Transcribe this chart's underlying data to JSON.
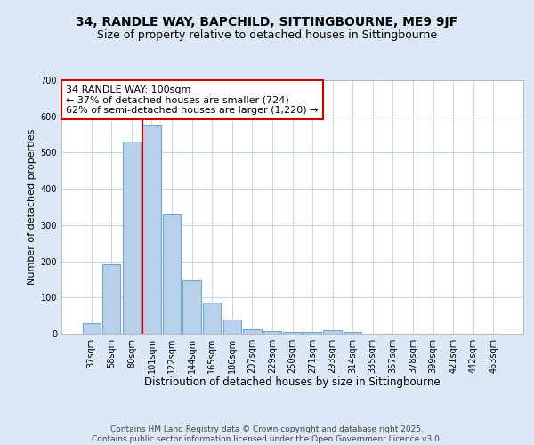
{
  "title1": "34, RANDLE WAY, BAPCHILD, SITTINGBOURNE, ME9 9JF",
  "title2": "Size of property relative to detached houses in Sittingbourne",
  "xlabel": "Distribution of detached houses by size in Sittingbourne",
  "ylabel": "Number of detached properties",
  "categories": [
    "37sqm",
    "58sqm",
    "80sqm",
    "101sqm",
    "122sqm",
    "144sqm",
    "165sqm",
    "186sqm",
    "207sqm",
    "229sqm",
    "250sqm",
    "271sqm",
    "293sqm",
    "314sqm",
    "335sqm",
    "357sqm",
    "378sqm",
    "399sqm",
    "421sqm",
    "442sqm",
    "463sqm"
  ],
  "values": [
    30,
    192,
    530,
    575,
    330,
    148,
    87,
    40,
    13,
    8,
    5,
    5,
    10,
    5,
    0,
    0,
    0,
    0,
    0,
    0,
    0
  ],
  "bar_color": "#b8d0ea",
  "bar_edge_color": "#6aaad4",
  "highlight_index": 3,
  "red_line_color": "#cc0000",
  "ylim": [
    0,
    700
  ],
  "yticks": [
    0,
    100,
    200,
    300,
    400,
    500,
    600,
    700
  ],
  "annotation_text": "34 RANDLE WAY: 100sqm\n← 37% of detached houses are smaller (724)\n62% of semi-detached houses are larger (1,220) →",
  "annotation_box_color": "#ffffff",
  "annotation_box_edge": "#cc0000",
  "footer_text": "Contains HM Land Registry data © Crown copyright and database right 2025.\nContains public sector information licensed under the Open Government Licence v3.0.",
  "background_color": "#dce8f5",
  "plot_bg_color": "#ffffff",
  "grid_color": "#c8d8ec",
  "title1_fontsize": 10,
  "title2_fontsize": 9,
  "xlabel_fontsize": 8.5,
  "ylabel_fontsize": 8,
  "tick_fontsize": 7,
  "footer_fontsize": 6.5,
  "ann_fontsize": 8
}
